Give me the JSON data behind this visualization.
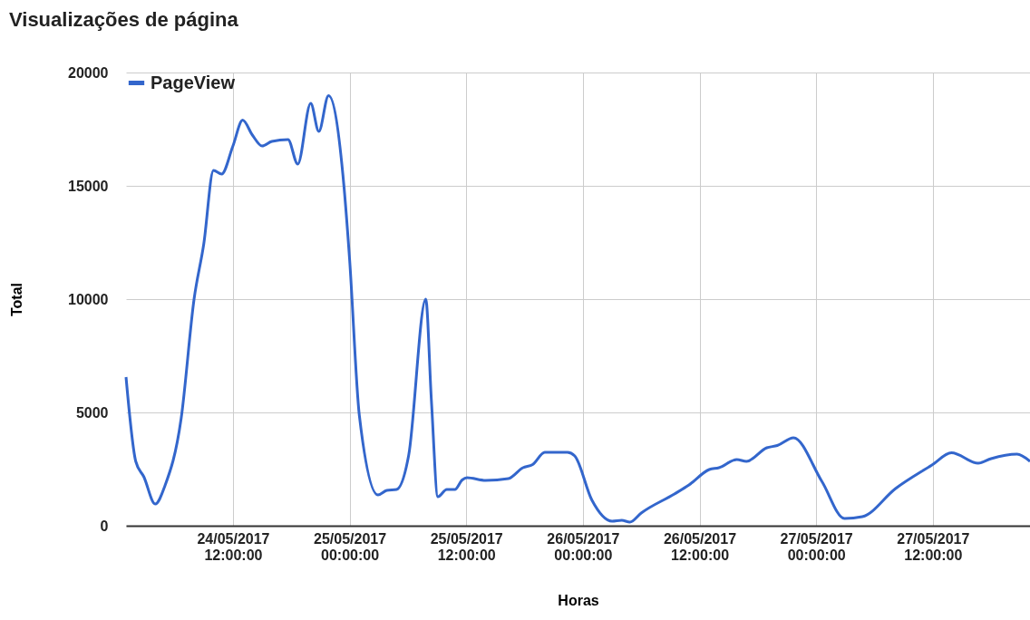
{
  "chart_data": {
    "type": "line",
    "title": "Visualizações de página",
    "xlabel": "Horas",
    "ylabel": "Total",
    "x": [
      "2017-05-24T01:00",
      "2017-05-24T02:00",
      "2017-05-24T02:50",
      "2017-05-24T04:00",
      "2017-05-24T05:00",
      "2017-05-24T06:40",
      "2017-05-24T08:00",
      "2017-05-24T09:00",
      "2017-05-24T10:00",
      "2017-05-24T10:50",
      "2017-05-24T12:00",
      "2017-05-24T13:00",
      "2017-05-24T14:00",
      "2017-05-24T15:00",
      "2017-05-24T16:00",
      "2017-05-24T17:40",
      "2017-05-24T18:40",
      "2017-05-24T20:00",
      "2017-05-24T20:50",
      "2017-05-24T21:50",
      "2017-05-24T23:25",
      "2017-05-25T00:00",
      "2017-05-25T01:00",
      "2017-05-25T02:55",
      "2017-05-25T03:50",
      "2017-05-25T04:50",
      "2017-05-25T06:05",
      "2017-05-25T07:50",
      "2017-05-25T08:25",
      "2017-05-25T09:05",
      "2017-05-25T10:00",
      "2017-05-25T10:50",
      "2017-05-25T11:35",
      "2017-05-25T12:05",
      "2017-05-25T14:00",
      "2017-05-25T16:20",
      "2017-05-25T17:50",
      "2017-05-25T18:50",
      "2017-05-25T20:05",
      "2017-05-25T22:25",
      "2017-05-25T23:10",
      "2017-05-26T00:55",
      "2017-05-26T03:00",
      "2017-05-26T04:00",
      "2017-05-26T04:50",
      "2017-05-26T06:00",
      "2017-05-26T09:25",
      "2017-05-26T10:55",
      "2017-05-26T13:00",
      "2017-05-26T14:00",
      "2017-05-26T15:50",
      "2017-05-26T16:50",
      "2017-05-26T18:55",
      "2017-05-26T20:00",
      "2017-05-26T21:40",
      "2017-05-27T00:35",
      "2017-05-27T02:55",
      "2017-05-27T04:45",
      "2017-05-27T08:10",
      "2017-05-27T11:55",
      "2017-05-27T13:55",
      "2017-05-27T16:40",
      "2017-05-27T18:00",
      "2017-05-27T20:40",
      "2017-05-27T22:00"
    ],
    "series": [
      {
        "name": "PageView",
        "color": "#3366cc",
        "values": [
          6560,
          2840,
          2160,
          960,
          1760,
          4720,
          10000,
          12440,
          15680,
          15520,
          16760,
          17900,
          17240,
          16760,
          16960,
          17040,
          15960,
          18640,
          17400,
          18980,
          15000,
          11760,
          4880,
          1360,
          1560,
          1600,
          3120,
          10000,
          5520,
          1280,
          1600,
          1600,
          2020,
          2120,
          2000,
          2080,
          2560,
          2700,
          3240,
          3240,
          3080,
          1140,
          200,
          240,
          160,
          560,
          1400,
          1800,
          2480,
          2560,
          2920,
          2840,
          3440,
          3540,
          3880,
          1960,
          320,
          400,
          1640,
          2680,
          3220,
          2760,
          2960,
          3160,
          2840
        ]
      }
    ],
    "xlim": [
      "2017-05-24T01:00",
      "2017-05-27T22:00"
    ],
    "xticks": [
      {
        "value": "2017-05-24T12:00",
        "label": "24/05/2017\n12:00:00"
      },
      {
        "value": "2017-05-25T00:00",
        "label": "25/05/2017\n00:00:00"
      },
      {
        "value": "2017-05-25T12:00",
        "label": "25/05/2017\n12:00:00"
      },
      {
        "value": "2017-05-26T00:00",
        "label": "26/05/2017\n00:00:00"
      },
      {
        "value": "2017-05-26T12:00",
        "label": "26/05/2017\n12:00:00"
      },
      {
        "value": "2017-05-27T00:00",
        "label": "27/05/2017\n00:00:00"
      },
      {
        "value": "2017-05-27T12:00",
        "label": "27/05/2017\n12:00:00"
      }
    ],
    "ylim": [
      0,
      20000
    ],
    "yticks": [
      0,
      5000,
      10000,
      15000,
      20000
    ],
    "grid": true,
    "legend": "top",
    "marker": "none",
    "line_style": "solid"
  }
}
